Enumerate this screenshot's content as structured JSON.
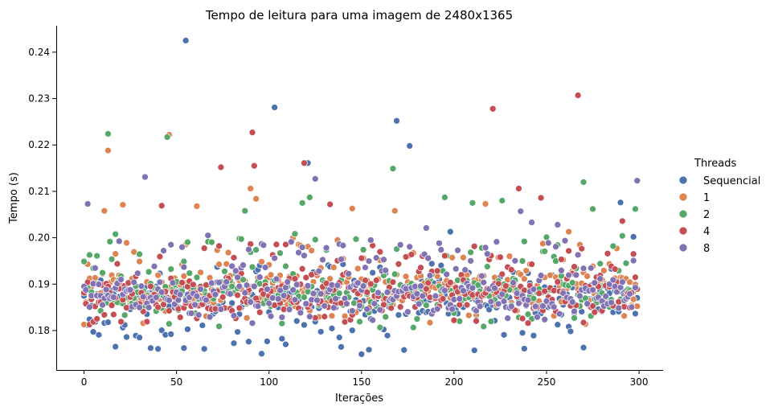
{
  "chart_data": {
    "type": "scatter",
    "title": "Tempo de leitura para uma imagem de 2480x1365",
    "xlabel": "Iterações",
    "ylabel": "Tempo (s)",
    "xlim": [
      -15,
      313
    ],
    "ylim": [
      0.1715,
      0.2457
    ],
    "xticks": [
      0,
      50,
      100,
      150,
      200,
      250,
      300
    ],
    "yticks": [
      0.18,
      0.19,
      0.2,
      0.21,
      0.22,
      0.23,
      0.24
    ],
    "ytick_labels": [
      "0.18",
      "0.19",
      "0.20",
      "0.21",
      "0.22",
      "0.23",
      "0.24"
    ],
    "grid": false,
    "legend": {
      "title": "Threads",
      "placement": "right"
    },
    "series": [
      {
        "name": "Sequencial",
        "color": "#4c72b0",
        "n": 300,
        "base": 0.1865,
        "band_low": 0.1755,
        "band_high": 0.1945,
        "outliers": [
          [
            55,
            0.2425
          ],
          [
            103,
            0.2281
          ],
          [
            121,
            0.2161
          ],
          [
            169,
            0.2252
          ],
          [
            176,
            0.2198
          ],
          [
            198,
            0.2013
          ],
          [
            290,
            0.2076
          ],
          [
            297,
            0.2002
          ],
          [
            150,
            0.1749
          ],
          [
            96,
            0.175
          ],
          [
            173,
            0.1758
          ],
          [
            238,
            0.1761
          ],
          [
            89,
            0.1776
          ],
          [
            30,
            0.1785
          ]
        ]
      },
      {
        "name": "1",
        "color": "#dd8452",
        "n": 300,
        "base": 0.189,
        "band_low": 0.1815,
        "band_high": 0.2,
        "outliers": [
          [
            13,
            0.2188
          ],
          [
            46,
            0.2222
          ],
          [
            21,
            0.2071
          ],
          [
            11,
            0.2058
          ],
          [
            61,
            0.2068
          ],
          [
            90,
            0.2106
          ],
          [
            93,
            0.2084
          ],
          [
            145,
            0.2063
          ],
          [
            168,
            0.2058
          ],
          [
            217,
            0.2073
          ],
          [
            262,
            0.2013
          ],
          [
            0,
            0.1813
          ],
          [
            271,
            0.1814
          ]
        ]
      },
      {
        "name": "2",
        "color": "#55a868",
        "n": 300,
        "base": 0.188,
        "band_low": 0.1805,
        "band_high": 0.201,
        "outliers": [
          [
            13,
            0.2224
          ],
          [
            45,
            0.2217
          ],
          [
            118,
            0.2075
          ],
          [
            122,
            0.2087
          ],
          [
            167,
            0.2149
          ],
          [
            195,
            0.2087
          ],
          [
            210,
            0.2075
          ],
          [
            270,
            0.212
          ],
          [
            275,
            0.2062
          ],
          [
            298,
            0.2062
          ],
          [
            87,
            0.2058
          ],
          [
            226,
            0.208
          ]
        ]
      },
      {
        "name": "4",
        "color": "#c44e52",
        "n": 300,
        "base": 0.1875,
        "band_low": 0.181,
        "band_high": 0.199,
        "outliers": [
          [
            91,
            0.2227
          ],
          [
            92,
            0.2155
          ],
          [
            74,
            0.2152
          ],
          [
            119,
            0.2161
          ],
          [
            133,
            0.2072
          ],
          [
            221,
            0.2278
          ],
          [
            267,
            0.2307
          ],
          [
            235,
            0.2106
          ],
          [
            247,
            0.2086
          ],
          [
            291,
            0.2036
          ],
          [
            42,
            0.2069
          ],
          [
            61,
            0.1826
          ],
          [
            130,
            0.183
          ]
        ]
      },
      {
        "name": "8",
        "color": "#8172b3",
        "n": 300,
        "base": 0.1875,
        "band_low": 0.1815,
        "band_high": 0.1995,
        "outliers": [
          [
            2,
            0.2073
          ],
          [
            33,
            0.2131
          ],
          [
            125,
            0.2127
          ],
          [
            185,
            0.2021
          ],
          [
            299,
            0.2123
          ],
          [
            236,
            0.2057
          ],
          [
            242,
            0.2033
          ],
          [
            256,
            0.2028
          ],
          [
            67,
            0.2005
          ],
          [
            155,
            0.1995
          ]
        ]
      }
    ]
  }
}
